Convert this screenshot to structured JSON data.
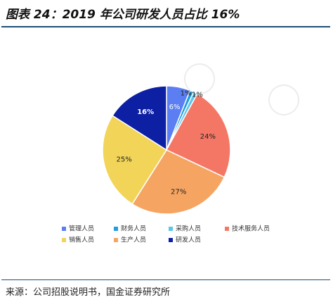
{
  "header": {
    "title": "图表 24：2019 年公司研发人员占比 16%"
  },
  "footer": {
    "source": "来源：公司招股说明书，国金证券研究所"
  },
  "chart_data": {
    "type": "pie",
    "title": "",
    "series": [
      {
        "name": "管理人员",
        "value": 6,
        "label": "6%",
        "color": "#5b7ff2"
      },
      {
        "name": "财务人员",
        "value": 1,
        "label": "1%",
        "color": "#1f9ee0"
      },
      {
        "name": "采购人员",
        "value": 1,
        "label": "1%",
        "color": "#5bc6e8"
      },
      {
        "name": "技术服务人员",
        "value": 24,
        "label": "24%",
        "color": "#f47766"
      },
      {
        "name": "生产人员",
        "value": 27,
        "label": "27%",
        "color": "#f5a561"
      },
      {
        "name": "销售人员",
        "value": 25,
        "label": "25%",
        "color": "#f2d458"
      },
      {
        "name": "研发人员",
        "value": 16,
        "label": "16%",
        "color": "#0d1fa3"
      }
    ],
    "legend": {
      "placement": "bottom",
      "rows": [
        [
          "管理人员",
          "财务人员",
          "采购人员",
          "技术服务人员"
        ],
        [
          "销售人员",
          "生产人员",
          "研发人员"
        ]
      ]
    }
  }
}
